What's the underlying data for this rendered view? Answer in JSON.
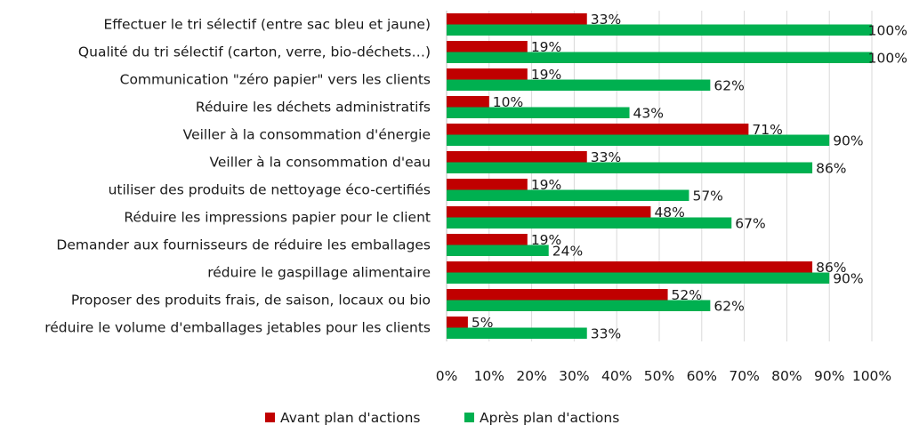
{
  "chart_data": {
    "type": "bar",
    "orientation": "horizontal",
    "categories": [
      "Effectuer le tri sélectif (entre sac bleu et jaune)",
      "Qualité du  tri sélectif (carton, verre, bio-déchets…)",
      "Communication \"zéro papier\" vers les clients",
      "Réduire les déchets administratifs",
      "Veiller à la consommation d'énergie",
      "Veiller à la consommation d'eau",
      "utiliser des produits de nettoyage éco-certifiés",
      "Réduire les impressions papier pour le client",
      "Demander aux fournisseurs de réduire les emballages",
      "réduire le gaspillage alimentaire",
      "Proposer des produits frais, de saison, locaux ou bio",
      "réduire le volume d'emballages jetables pour les clients"
    ],
    "series": [
      {
        "name": "Avant plan d'actions",
        "color": "#c00000",
        "values": [
          33,
          19,
          19,
          10,
          71,
          33,
          19,
          48,
          19,
          86,
          52,
          5
        ],
        "labels": [
          "33%",
          "19%",
          "19%",
          "10%",
          "71%",
          "33%",
          "19%",
          "48%",
          "19%",
          "86%",
          "52%",
          "5%"
        ]
      },
      {
        "name": "Après plan d'actions",
        "color": "#00b050",
        "values": [
          100,
          100,
          62,
          43,
          90,
          86,
          57,
          67,
          24,
          90,
          62,
          33
        ],
        "labels": [
          "100%",
          "100%",
          "62%",
          "43%",
          "90%",
          "86%",
          "57%",
          "67%",
          "24%",
          "90%",
          "62%",
          "33%"
        ]
      }
    ],
    "xlim": [
      0,
      100
    ],
    "xticks": [
      "0%",
      "10%",
      "20%",
      "30%",
      "40%",
      "50%",
      "60%",
      "70%",
      "80%",
      "90%",
      "100%"
    ],
    "grid": true,
    "legend": "bottom",
    "title": "",
    "xlabel": "",
    "ylabel": ""
  }
}
